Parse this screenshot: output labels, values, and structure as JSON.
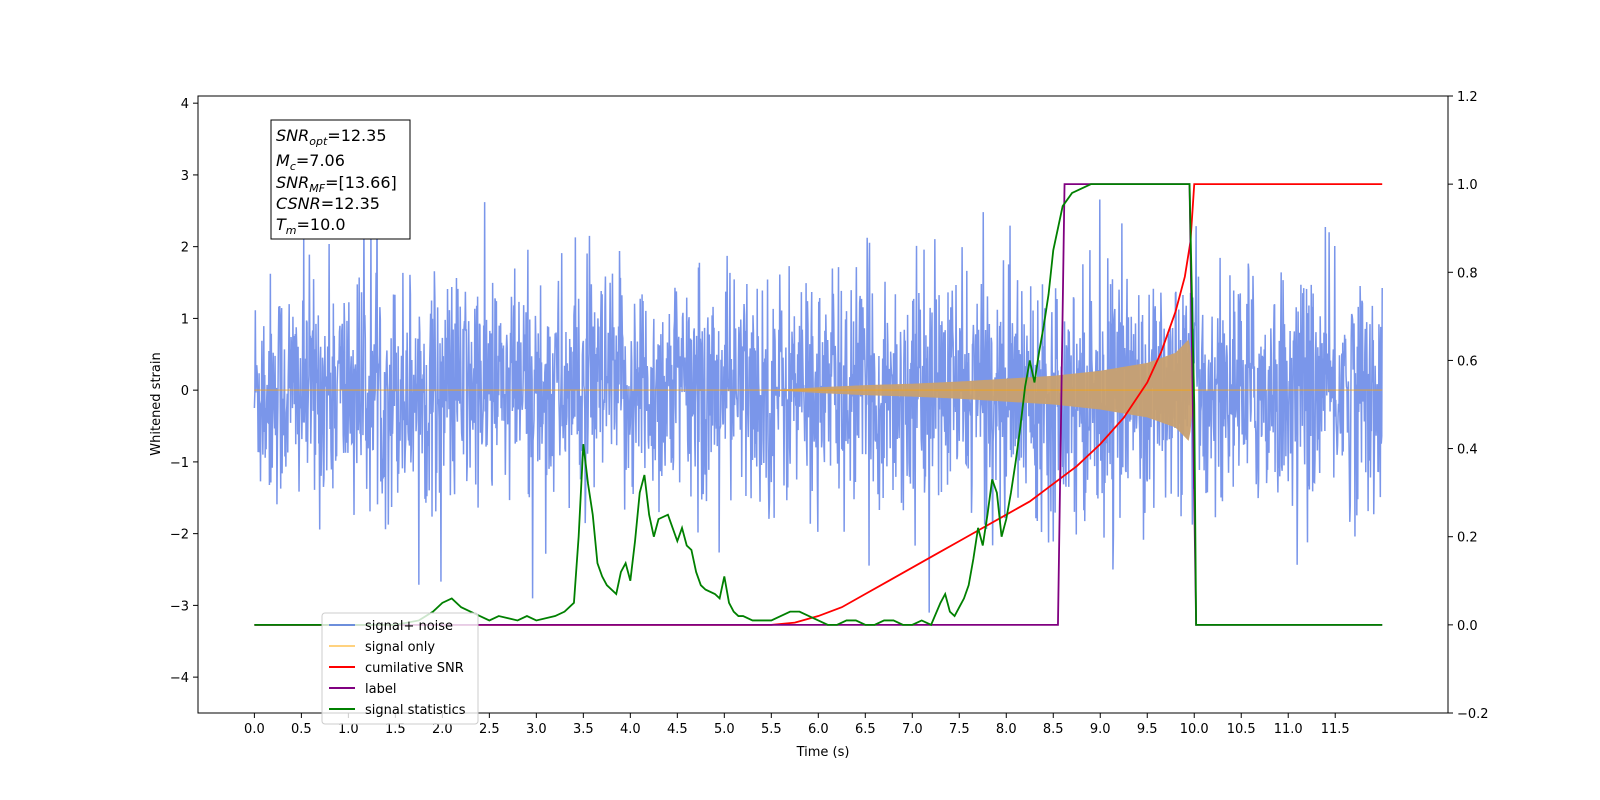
{
  "chart_data": {
    "type": "line",
    "title": "",
    "xlabel": "Time (s)",
    "ylabel": "Whitened strain",
    "xlim": [
      -0.6,
      12.7
    ],
    "ylim": [
      -4.5,
      4.1
    ],
    "y2lim": [
      -0.2,
      1.2
    ],
    "x_ticks": [
      "0.0",
      "0.5",
      "1.0",
      "1.5",
      "2.0",
      "2.5",
      "3.0",
      "3.5",
      "4.0",
      "4.5",
      "5.0",
      "5.5",
      "6.0",
      "6.5",
      "7.0",
      "7.5",
      "8.0",
      "8.5",
      "9.0",
      "9.5",
      "10.0",
      "10.5",
      "11.0",
      "11.5"
    ],
    "y_ticks": [
      "−4",
      "−3",
      "−2",
      "−1",
      "0",
      "1",
      "2",
      "3",
      "4"
    ],
    "y2_ticks": [
      "−0.2",
      "0.0",
      "0.2",
      "0.4",
      "0.6",
      "0.8",
      "1.0",
      "1.2"
    ],
    "grid": false,
    "legend_position": "lower-left",
    "info_box": {
      "snr_opt": {
        "sym": "SNR",
        "sub": "opt",
        "val": "=12.35"
      },
      "mc": {
        "sym": "M",
        "sub": "c",
        "val": "=7.06"
      },
      "snr_mf": {
        "sym": "SNR",
        "sub": "MF",
        "val": "=[13.66]"
      },
      "csnr": {
        "sym": "CSNR",
        "sub": "",
        "val": "=12.35"
      },
      "tm": {
        "sym": "T",
        "sub": "m",
        "val": "=10.0"
      }
    },
    "series": [
      {
        "name": "signal+ noise",
        "color": "#4169e1",
        "axis": "left",
        "description": "whitened noise with std ~0.8 spanning 0 to 12 s"
      },
      {
        "name": "signal only",
        "color": "#ffa500",
        "axis": "left",
        "envelope_t": [
          0,
          5.5,
          6.0,
          6.5,
          7.0,
          7.5,
          8.0,
          8.5,
          9.0,
          9.5,
          9.8,
          9.95,
          10.0
        ],
        "envelope_a": [
          0.0,
          0.0,
          0.04,
          0.07,
          0.09,
          0.12,
          0.16,
          0.2,
          0.27,
          0.38,
          0.52,
          0.72,
          0.0
        ]
      },
      {
        "name": "cumilative SNR",
        "color": "#ff0000",
        "axis": "right",
        "x": [
          0,
          5.5,
          5.75,
          6.0,
          6.25,
          6.5,
          6.75,
          7.0,
          7.25,
          7.5,
          7.75,
          8.0,
          8.25,
          8.5,
          8.75,
          9.0,
          9.25,
          9.5,
          9.65,
          9.8,
          9.9,
          9.96,
          10.0,
          12.0
        ],
        "y": [
          0,
          0,
          0.005,
          0.02,
          0.04,
          0.07,
          0.1,
          0.13,
          0.16,
          0.19,
          0.22,
          0.25,
          0.28,
          0.32,
          0.36,
          0.41,
          0.47,
          0.55,
          0.62,
          0.71,
          0.79,
          0.87,
          1.0,
          1.0
        ]
      },
      {
        "name": "label",
        "color": "#800080",
        "axis": "right",
        "x": [
          0,
          8.55,
          8.62,
          9.0,
          9.95,
          10.02,
          12.0
        ],
        "y": [
          0,
          0,
          1,
          1,
          1,
          0,
          0
        ]
      },
      {
        "name": "signal statistics",
        "color": "#008000",
        "axis": "right",
        "x": [
          0,
          1.5,
          1.75,
          1.9,
          2.0,
          2.1,
          2.2,
          2.3,
          2.4,
          2.5,
          2.6,
          2.8,
          2.9,
          3.0,
          3.2,
          3.3,
          3.4,
          3.45,
          3.5,
          3.55,
          3.6,
          3.65,
          3.7,
          3.75,
          3.85,
          3.9,
          3.95,
          4.0,
          4.05,
          4.1,
          4.15,
          4.2,
          4.25,
          4.3,
          4.4,
          4.45,
          4.5,
          4.55,
          4.6,
          4.65,
          4.7,
          4.75,
          4.8,
          4.9,
          4.95,
          5.0,
          5.05,
          5.1,
          5.15,
          5.2,
          5.3,
          5.4,
          5.5,
          5.6,
          5.7,
          5.8,
          5.9,
          6.0,
          6.1,
          6.2,
          6.3,
          6.4,
          6.5,
          6.6,
          6.7,
          6.8,
          6.9,
          7.0,
          7.1,
          7.2,
          7.3,
          7.35,
          7.4,
          7.45,
          7.5,
          7.55,
          7.6,
          7.65,
          7.7,
          7.75,
          7.8,
          7.85,
          7.9,
          7.95,
          8.0,
          8.05,
          8.1,
          8.15,
          8.2,
          8.25,
          8.3,
          8.35,
          8.4,
          8.45,
          8.5,
          8.6,
          8.7,
          8.8,
          8.9,
          9.0,
          9.1,
          9.2,
          9.5,
          9.8,
          9.95,
          10.0,
          10.02,
          12.0
        ],
        "y": [
          0,
          0,
          0.01,
          0.03,
          0.05,
          0.06,
          0.04,
          0.03,
          0.02,
          0.01,
          0.02,
          0.01,
          0.02,
          0.01,
          0.02,
          0.03,
          0.05,
          0.2,
          0.41,
          0.32,
          0.25,
          0.14,
          0.11,
          0.09,
          0.07,
          0.12,
          0.14,
          0.1,
          0.19,
          0.3,
          0.34,
          0.25,
          0.2,
          0.24,
          0.25,
          0.22,
          0.19,
          0.22,
          0.18,
          0.17,
          0.12,
          0.09,
          0.08,
          0.07,
          0.06,
          0.11,
          0.05,
          0.03,
          0.02,
          0.02,
          0.01,
          0.01,
          0.01,
          0.02,
          0.03,
          0.03,
          0.02,
          0.01,
          0.0,
          0.0,
          0.01,
          0.01,
          0.0,
          0.0,
          0.01,
          0.01,
          0.0,
          0.0,
          0.01,
          0.0,
          0.05,
          0.07,
          0.03,
          0.02,
          0.04,
          0.06,
          0.09,
          0.15,
          0.22,
          0.18,
          0.25,
          0.33,
          0.3,
          0.2,
          0.24,
          0.3,
          0.37,
          0.45,
          0.54,
          0.6,
          0.55,
          0.62,
          0.68,
          0.75,
          0.85,
          0.95,
          0.98,
          0.99,
          1.0,
          1.0,
          1.0,
          1.0,
          1.0,
          1.0,
          1.0,
          0.5,
          0.0,
          0.0
        ]
      }
    ]
  }
}
